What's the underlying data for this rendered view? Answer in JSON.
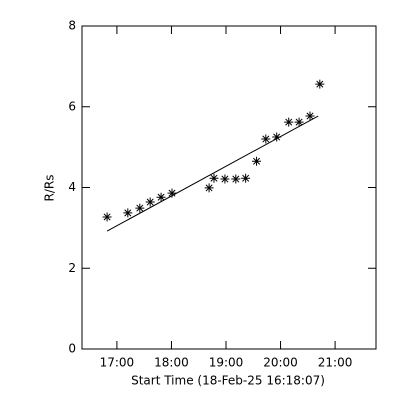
{
  "chart_data": {
    "type": "scatter",
    "x_label": "Start Time (18-Feb-25 16:18:07)",
    "y_label": "R/Rs",
    "x": [
      16.82,
      17.2,
      17.42,
      17.61,
      17.81,
      18.01,
      18.69,
      18.78,
      18.98,
      19.18,
      19.36,
      19.56,
      19.73,
      19.93,
      20.15,
      20.34,
      20.54,
      20.72
    ],
    "values": [
      3.27,
      3.37,
      3.49,
      3.64,
      3.76,
      3.86,
      3.99,
      4.23,
      4.21,
      4.21,
      4.23,
      4.65,
      5.2,
      5.25,
      5.62,
      5.62,
      5.77,
      6.56
    ],
    "fit": {
      "x": [
        16.82,
        20.69
      ],
      "y": [
        2.92,
        5.77
      ]
    },
    "color": "#000000",
    "xlim": [
      16.36,
      21.75
    ],
    "ylim": [
      0,
      8
    ],
    "xticks": [
      {
        "value": 17,
        "label": "17:00"
      },
      {
        "value": 18,
        "label": "18:00"
      },
      {
        "value": 19,
        "label": "19:00"
      },
      {
        "value": 20,
        "label": "20:00"
      },
      {
        "value": 21,
        "label": "21:00"
      }
    ],
    "yticks": [
      0,
      2,
      4,
      6,
      8
    ]
  }
}
